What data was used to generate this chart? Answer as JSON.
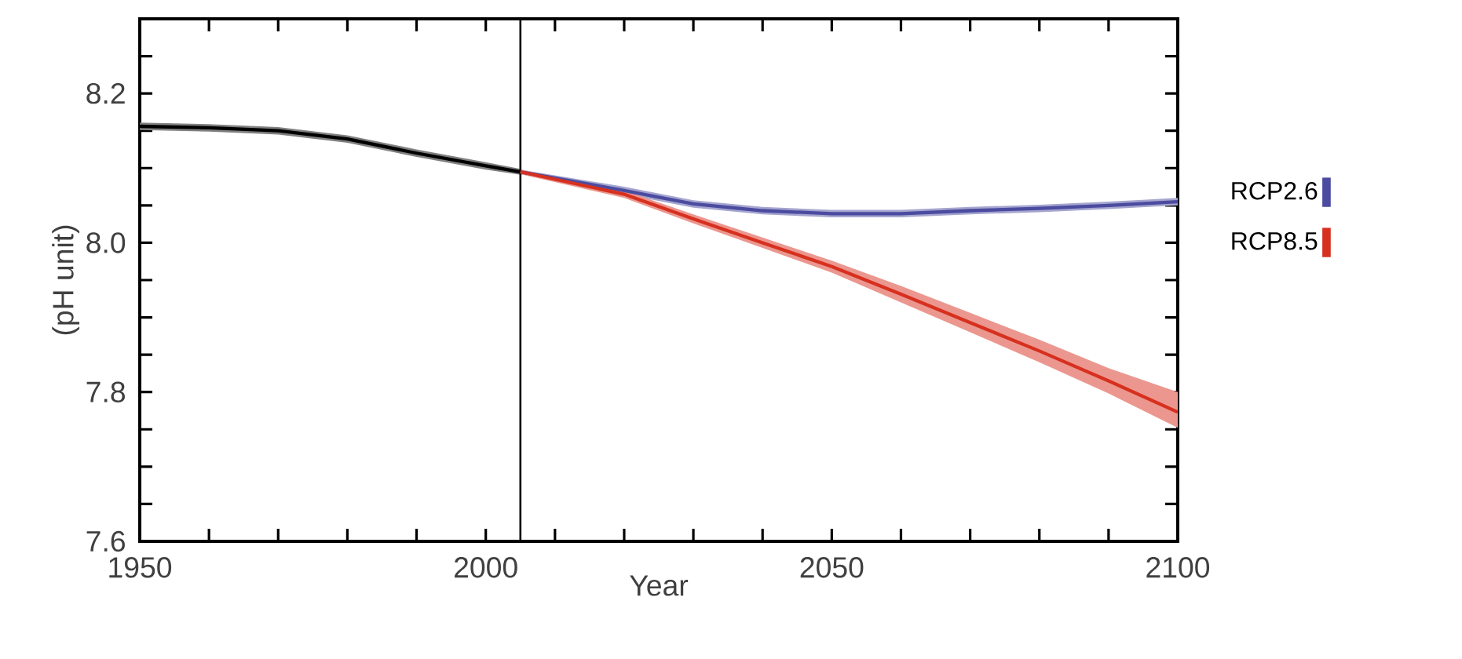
{
  "chart_data": {
    "type": "line",
    "xlabel": "Year",
    "ylabel": "(pH unit)",
    "xlim": [
      1950,
      2100
    ],
    "ylim": [
      7.6,
      8.3
    ],
    "xticks": [
      1950,
      {
        "value": 1960,
        "label": null
      },
      {
        "value": 1970,
        "label": null
      },
      {
        "value": 1980,
        "label": null
      },
      {
        "value": 1990,
        "label": null
      },
      2000,
      {
        "value": 2010,
        "label": null
      },
      {
        "value": 2020,
        "label": null
      },
      {
        "value": 2030,
        "label": null
      },
      {
        "value": 2040,
        "label": null
      },
      2050,
      {
        "value": 2060,
        "label": null
      },
      {
        "value": 2070,
        "label": null
      },
      {
        "value": 2080,
        "label": null
      },
      {
        "value": 2090,
        "label": null
      },
      2100
    ],
    "yticks": [
      {
        "value": 7.6,
        "label": "7.6"
      },
      {
        "value": 7.65,
        "label": null
      },
      {
        "value": 7.7,
        "label": null
      },
      {
        "value": 7.75,
        "label": null
      },
      {
        "value": 7.8,
        "label": "7.8"
      },
      {
        "value": 7.85,
        "label": null
      },
      {
        "value": 7.9,
        "label": null
      },
      {
        "value": 7.95,
        "label": null
      },
      {
        "value": 8.0,
        "label": "8.0"
      },
      {
        "value": 8.05,
        "label": null
      },
      {
        "value": 8.1,
        "label": null
      },
      {
        "value": 8.15,
        "label": null
      },
      {
        "value": 8.2,
        "label": "8.2"
      },
      {
        "value": 8.25,
        "label": null
      }
    ],
    "series": [
      {
        "color": "#000000",
        "x": [
          1950,
          1960,
          1970,
          1980,
          1990,
          2000,
          2005
        ],
        "values": [
          8.156,
          8.154,
          8.15,
          8.139,
          8.12,
          8.103,
          8.095
        ],
        "lower": [
          8.151,
          8.149,
          8.145,
          8.134,
          8.115,
          8.098,
          8.091
        ],
        "upper": [
          8.161,
          8.159,
          8.155,
          8.144,
          8.125,
          8.108,
          8.099
        ]
      },
      {
        "name": "RCP2.6",
        "color": "#4b4ba0",
        "x": [
          2005,
          2020,
          2030,
          2040,
          2050,
          2060,
          2070,
          2080,
          2090,
          2100
        ],
        "values": [
          8.095,
          8.07,
          8.052,
          8.043,
          8.039,
          8.039,
          8.043,
          8.046,
          8.05,
          8.055
        ],
        "lower": [
          8.092,
          8.065,
          8.047,
          8.038,
          8.034,
          8.034,
          8.038,
          8.041,
          8.045,
          8.05
        ],
        "upper": [
          8.098,
          8.075,
          8.057,
          8.048,
          8.044,
          8.044,
          8.048,
          8.051,
          8.055,
          8.06
        ]
      },
      {
        "name": "RCP8.5",
        "color": "#d7301f",
        "x": [
          2005,
          2020,
          2030,
          2040,
          2050,
          2060,
          2070,
          2080,
          2090,
          2100
        ],
        "values": [
          8.095,
          8.065,
          8.032,
          8.0,
          7.968,
          7.931,
          7.893,
          7.855,
          7.815,
          7.773
        ],
        "lower": [
          8.092,
          8.06,
          8.026,
          7.993,
          7.96,
          7.92,
          7.88,
          7.84,
          7.798,
          7.752
        ],
        "upper": [
          8.098,
          8.07,
          8.038,
          8.007,
          7.976,
          7.942,
          7.906,
          7.87,
          7.832,
          7.8
        ]
      }
    ],
    "ref_lines": [
      {
        "axis": "x",
        "value": 2005,
        "color": "#000000"
      }
    ],
    "legend": "right",
    "grid": false,
    "marker": "none",
    "line_style": "solid"
  }
}
